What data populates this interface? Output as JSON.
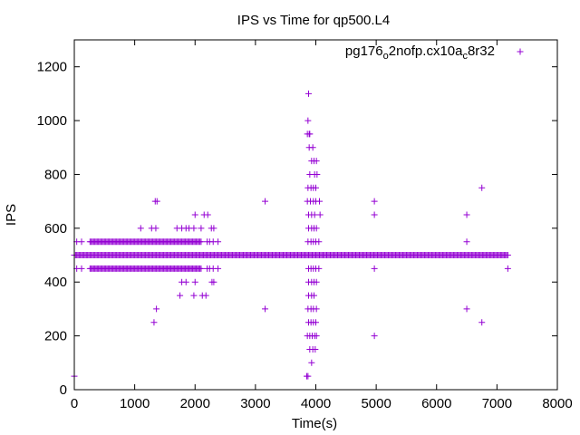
{
  "chart_data": {
    "type": "scatter",
    "title": "IPS vs Time for qp500.L4",
    "xlabel": "Time(s)",
    "ylabel": "IPS",
    "xlim": [
      0,
      8000
    ],
    "ylim": [
      0,
      1300
    ],
    "xticks": [
      0,
      1000,
      2000,
      3000,
      4000,
      5000,
      6000,
      7000,
      8000
    ],
    "yticks": [
      0,
      200,
      400,
      600,
      800,
      1000,
      1200
    ],
    "grid": false,
    "legend_position": "top-right",
    "marker": "plus",
    "series": [
      {
        "name": "pg176_o2nofp.cx10a_c8r32",
        "name_parts": [
          "pg176",
          "o",
          "2nofp.cx10a",
          "c",
          "8r32"
        ],
        "color": "#9400d3",
        "bands": [
          {
            "y": 500,
            "x_from": 0,
            "x_to": 7180,
            "step": 20
          },
          {
            "y": 550,
            "x_from": 260,
            "x_to": 2100,
            "step": 20
          },
          {
            "y": 450,
            "x_from": 260,
            "x_to": 2100,
            "step": 20
          }
        ],
        "points": [
          [
            0,
            50
          ],
          [
            40,
            550
          ],
          [
            40,
            450
          ],
          [
            120,
            550
          ],
          [
            120,
            450
          ],
          [
            2200,
            550
          ],
          [
            2240,
            550
          ],
          [
            2300,
            550
          ],
          [
            2380,
            550
          ],
          [
            2200,
            450
          ],
          [
            2240,
            450
          ],
          [
            2300,
            450
          ],
          [
            2380,
            450
          ],
          [
            1100,
            600
          ],
          [
            1280,
            600
          ],
          [
            1350,
            600
          ],
          [
            1700,
            600
          ],
          [
            1780,
            600
          ],
          [
            1850,
            600
          ],
          [
            1900,
            600
          ],
          [
            1980,
            600
          ],
          [
            2100,
            600
          ],
          [
            2270,
            600
          ],
          [
            2310,
            600
          ],
          [
            1340,
            700
          ],
          [
            1370,
            700
          ],
          [
            2000,
            650
          ],
          [
            2150,
            650
          ],
          [
            2210,
            650
          ],
          [
            1780,
            400
          ],
          [
            1850,
            400
          ],
          [
            2000,
            400
          ],
          [
            2280,
            400
          ],
          [
            2310,
            400
          ],
          [
            1750,
            350
          ],
          [
            1980,
            350
          ],
          [
            2120,
            350
          ],
          [
            2180,
            350
          ],
          [
            1360,
            300
          ],
          [
            1320,
            250
          ],
          [
            3160,
            700
          ],
          [
            3160,
            300
          ],
          [
            3850,
            50
          ],
          [
            3870,
            50
          ],
          [
            3930,
            100
          ],
          [
            3900,
            150
          ],
          [
            3950,
            150
          ],
          [
            3990,
            150
          ],
          [
            3860,
            200
          ],
          [
            3900,
            200
          ],
          [
            3940,
            200
          ],
          [
            3980,
            200
          ],
          [
            4010,
            200
          ],
          [
            3880,
            250
          ],
          [
            3920,
            250
          ],
          [
            3960,
            250
          ],
          [
            4000,
            250
          ],
          [
            3870,
            300
          ],
          [
            3920,
            300
          ],
          [
            3960,
            300
          ],
          [
            4010,
            300
          ],
          [
            3880,
            350
          ],
          [
            3930,
            350
          ],
          [
            3970,
            350
          ],
          [
            3880,
            400
          ],
          [
            3930,
            400
          ],
          [
            3970,
            400
          ],
          [
            4010,
            400
          ],
          [
            3880,
            450
          ],
          [
            3920,
            450
          ],
          [
            3960,
            450
          ],
          [
            4000,
            450
          ],
          [
            4050,
            450
          ],
          [
            3870,
            550
          ],
          [
            3920,
            550
          ],
          [
            3960,
            550
          ],
          [
            4000,
            550
          ],
          [
            4050,
            550
          ],
          [
            3880,
            600
          ],
          [
            3930,
            600
          ],
          [
            3970,
            600
          ],
          [
            4010,
            600
          ],
          [
            3880,
            650
          ],
          [
            3930,
            650
          ],
          [
            3980,
            650
          ],
          [
            4070,
            650
          ],
          [
            3860,
            700
          ],
          [
            3910,
            700
          ],
          [
            3960,
            700
          ],
          [
            4000,
            700
          ],
          [
            4060,
            700
          ],
          [
            3870,
            750
          ],
          [
            3920,
            750
          ],
          [
            3960,
            750
          ],
          [
            4000,
            750
          ],
          [
            3900,
            800
          ],
          [
            3980,
            800
          ],
          [
            4020,
            800
          ],
          [
            3930,
            850
          ],
          [
            3970,
            850
          ],
          [
            4010,
            850
          ],
          [
            3890,
            900
          ],
          [
            3950,
            900
          ],
          [
            3860,
            950
          ],
          [
            3890,
            950
          ],
          [
            3900,
            950
          ],
          [
            3870,
            1000
          ],
          [
            3880,
            1100
          ],
          [
            4970,
            700
          ],
          [
            4970,
            650
          ],
          [
            4970,
            450
          ],
          [
            4970,
            200
          ],
          [
            6500,
            650
          ],
          [
            6500,
            550
          ],
          [
            6500,
            300
          ],
          [
            6750,
            750
          ],
          [
            6750,
            250
          ],
          [
            7180,
            450
          ]
        ]
      }
    ]
  }
}
